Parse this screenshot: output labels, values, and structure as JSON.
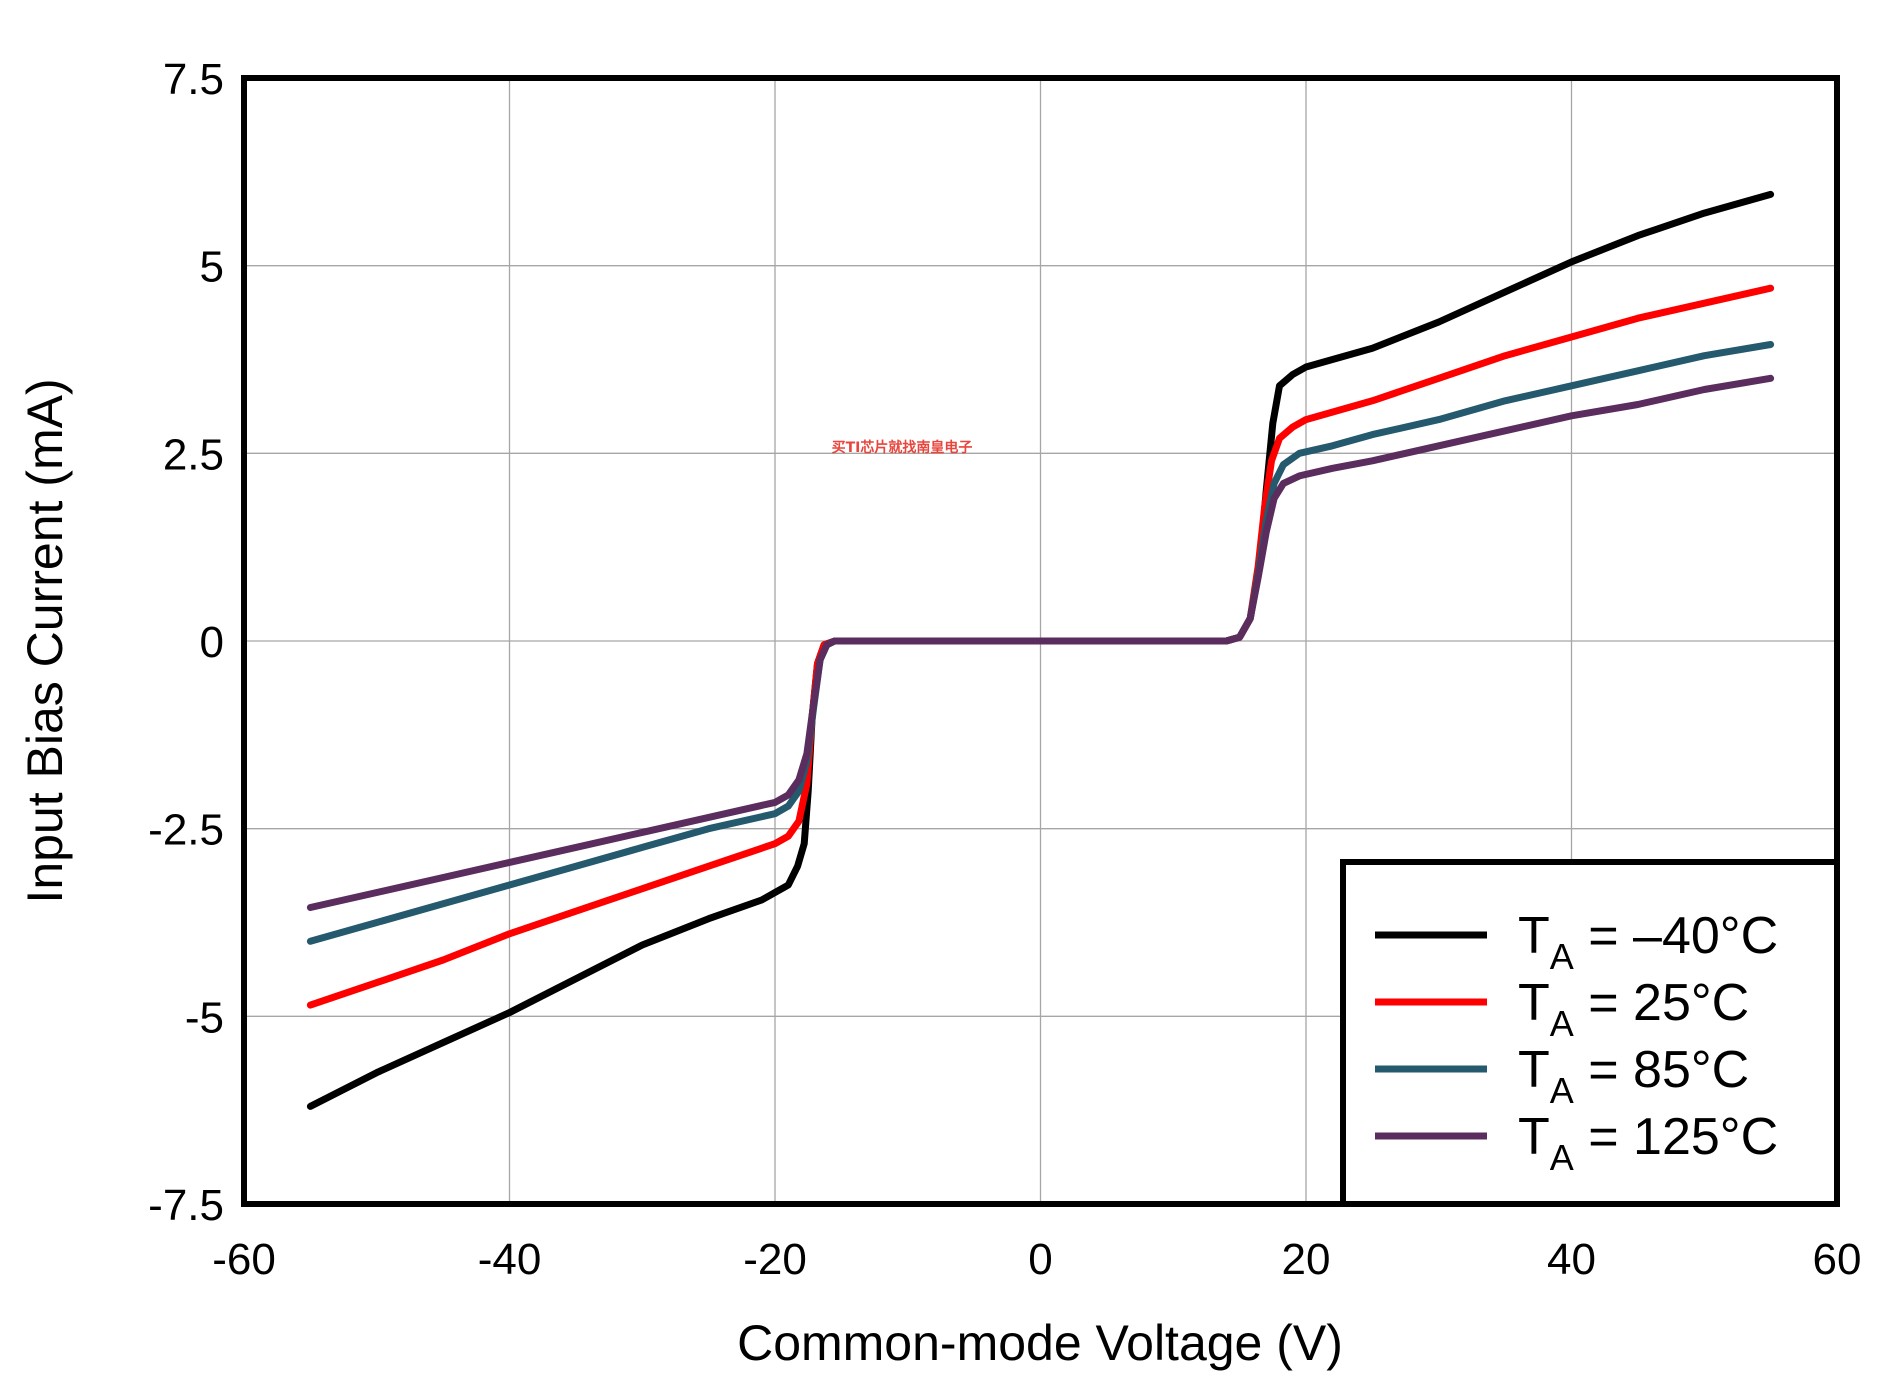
{
  "watermark": "买TI芯片就找南皇电子",
  "chart_data": {
    "type": "line",
    "xlabel": "Common-mode Voltage (V)",
    "ylabel": "Input Bias Current (mA)",
    "xlim": [
      -60,
      60
    ],
    "ylim": [
      -7.5,
      7.5
    ],
    "xticks": [
      "-60",
      "-40",
      "-20",
      "0",
      "20",
      "40",
      "60"
    ],
    "yticks": [
      "7.5",
      "5",
      "2.5",
      "0",
      "-2.5",
      "-5",
      "-7.5"
    ],
    "grid": true,
    "legend_position": "bottom-right",
    "series": [
      {
        "name_main": "T",
        "name_sub": "A",
        "name_rest": " = –40°C",
        "color": "#000000",
        "points": [
          [
            -55,
            -6.2
          ],
          [
            -50,
            -5.75
          ],
          [
            -45,
            -5.35
          ],
          [
            -40,
            -4.95
          ],
          [
            -35,
            -4.5
          ],
          [
            -30,
            -4.05
          ],
          [
            -25,
            -3.7
          ],
          [
            -21,
            -3.45
          ],
          [
            -19,
            -3.25
          ],
          [
            -18.3,
            -3.0
          ],
          [
            -17.8,
            -2.7
          ],
          [
            -17.5,
            -2.0
          ],
          [
            -17.2,
            -1.0
          ],
          [
            -16.8,
            -0.3
          ],
          [
            -16.3,
            -0.05
          ],
          [
            -15.5,
            0
          ],
          [
            0,
            0
          ],
          [
            14,
            0
          ],
          [
            15,
            0.05
          ],
          [
            15.8,
            0.3
          ],
          [
            16.5,
            1.0
          ],
          [
            17.0,
            2.0
          ],
          [
            17.5,
            2.9
          ],
          [
            18.0,
            3.4
          ],
          [
            19,
            3.55
          ],
          [
            20,
            3.65
          ],
          [
            22,
            3.75
          ],
          [
            25,
            3.9
          ],
          [
            30,
            4.25
          ],
          [
            35,
            4.65
          ],
          [
            40,
            5.05
          ],
          [
            45,
            5.4
          ],
          [
            50,
            5.7
          ],
          [
            55,
            5.95
          ]
        ]
      },
      {
        "name_main": "T",
        "name_sub": "A",
        "name_rest": " = 25°C",
        "color": "#ff0000",
        "points": [
          [
            -55,
            -4.85
          ],
          [
            -50,
            -4.55
          ],
          [
            -45,
            -4.25
          ],
          [
            -40,
            -3.9
          ],
          [
            -35,
            -3.6
          ],
          [
            -30,
            -3.3
          ],
          [
            -25,
            -3.0
          ],
          [
            -20,
            -2.7
          ],
          [
            -19,
            -2.6
          ],
          [
            -18.2,
            -2.4
          ],
          [
            -17.6,
            -1.9
          ],
          [
            -17.2,
            -1.0
          ],
          [
            -16.8,
            -0.3
          ],
          [
            -16.3,
            -0.05
          ],
          [
            -15.5,
            0
          ],
          [
            0,
            0
          ],
          [
            14,
            0
          ],
          [
            15,
            0.05
          ],
          [
            15.8,
            0.3
          ],
          [
            16.4,
            1.0
          ],
          [
            16.9,
            1.8
          ],
          [
            17.4,
            2.4
          ],
          [
            18,
            2.7
          ],
          [
            19,
            2.85
          ],
          [
            20,
            2.95
          ],
          [
            25,
            3.2
          ],
          [
            30,
            3.5
          ],
          [
            35,
            3.8
          ],
          [
            40,
            4.05
          ],
          [
            45,
            4.3
          ],
          [
            50,
            4.5
          ],
          [
            55,
            4.7
          ]
        ]
      },
      {
        "name_main": "T",
        "name_sub": "A",
        "name_rest": " = 85°C",
        "color": "#24596e",
        "points": [
          [
            -55,
            -4.0
          ],
          [
            -50,
            -3.75
          ],
          [
            -45,
            -3.5
          ],
          [
            -40,
            -3.25
          ],
          [
            -35,
            -3.0
          ],
          [
            -30,
            -2.75
          ],
          [
            -25,
            -2.5
          ],
          [
            -20,
            -2.3
          ],
          [
            -19,
            -2.2
          ],
          [
            -18.2,
            -2.0
          ],
          [
            -17.6,
            -1.6
          ],
          [
            -17.1,
            -0.9
          ],
          [
            -16.6,
            -0.25
          ],
          [
            -16.1,
            -0.05
          ],
          [
            -15.5,
            0
          ],
          [
            0,
            0
          ],
          [
            14,
            0
          ],
          [
            15,
            0.05
          ],
          [
            15.8,
            0.3
          ],
          [
            16.4,
            0.9
          ],
          [
            17.0,
            1.6
          ],
          [
            17.6,
            2.1
          ],
          [
            18.3,
            2.35
          ],
          [
            19.5,
            2.5
          ],
          [
            22,
            2.6
          ],
          [
            25,
            2.75
          ],
          [
            30,
            2.95
          ],
          [
            35,
            3.2
          ],
          [
            40,
            3.4
          ],
          [
            45,
            3.6
          ],
          [
            50,
            3.8
          ],
          [
            55,
            3.95
          ]
        ]
      },
      {
        "name_main": "T",
        "name_sub": "A",
        "name_rest": " = 125°C",
        "color": "#5a2d5e",
        "points": [
          [
            -55,
            -3.55
          ],
          [
            -50,
            -3.35
          ],
          [
            -45,
            -3.15
          ],
          [
            -40,
            -2.95
          ],
          [
            -35,
            -2.75
          ],
          [
            -30,
            -2.55
          ],
          [
            -25,
            -2.35
          ],
          [
            -20,
            -2.15
          ],
          [
            -19,
            -2.05
          ],
          [
            -18.2,
            -1.85
          ],
          [
            -17.6,
            -1.5
          ],
          [
            -17.1,
            -0.85
          ],
          [
            -16.6,
            -0.25
          ],
          [
            -16.1,
            -0.05
          ],
          [
            -15.5,
            0
          ],
          [
            0,
            0
          ],
          [
            14,
            0
          ],
          [
            15,
            0.05
          ],
          [
            15.8,
            0.3
          ],
          [
            16.4,
            0.85
          ],
          [
            17.0,
            1.45
          ],
          [
            17.6,
            1.9
          ],
          [
            18.3,
            2.1
          ],
          [
            19.5,
            2.2
          ],
          [
            22,
            2.3
          ],
          [
            25,
            2.4
          ],
          [
            30,
            2.6
          ],
          [
            35,
            2.8
          ],
          [
            40,
            3.0
          ],
          [
            45,
            3.15
          ],
          [
            50,
            3.35
          ],
          [
            55,
            3.5
          ]
        ]
      }
    ]
  }
}
